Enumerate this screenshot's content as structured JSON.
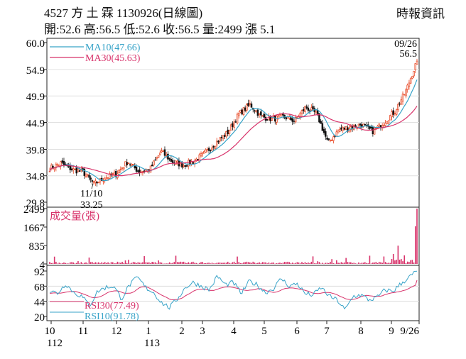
{
  "header": {
    "title": "4527 方 土 霖 1130926(日線圖)",
    "ohlc": "開:52.6 高:56.5 低:52.6 收:56.5 量:2499 漲 5.1",
    "source": "時報資訊"
  },
  "colors": {
    "up": "#e8431f",
    "down": "#111111",
    "ma10": "#37a3c8",
    "ma30": "#d8336b",
    "rsi30": "#d8336b",
    "rsi10": "#37a3c8",
    "volume": "#d8336b"
  },
  "chart_data": [
    {
      "type": "candlestick",
      "panel": "price",
      "y_ticks": [
        "60.0",
        "54.9",
        "49.9",
        "44.9",
        "39.8",
        "34.8",
        "29.8"
      ],
      "ylim": [
        29.8,
        60.0
      ],
      "x_tick_labels": [
        "10",
        "11",
        "12",
        "1",
        "2",
        "3",
        "4",
        "5",
        "6",
        "7",
        "8",
        "9",
        "9/26"
      ],
      "year_labels": [
        "112",
        "113"
      ],
      "legend": [
        {
          "name": "MA10(47.66)",
          "color": "#37a3c8"
        },
        {
          "name": "MA30(45.63)",
          "color": "#d8336b"
        }
      ],
      "annotations": {
        "high": {
          "date": "09/26",
          "value": "56.5"
        },
        "low": {
          "date": "11/10",
          "value": "33.25"
        }
      },
      "price_anchors": [
        36.2,
        37.2,
        36.0,
        35.5,
        33.25,
        34.5,
        35.2,
        37.5,
        35.6,
        36.0,
        39.4,
        37.5,
        36.8,
        37.6,
        39.2,
        41.2,
        43.0,
        46.5,
        48.3,
        46.0,
        45.5,
        46.0,
        45.2,
        47.8,
        46.5,
        41.0,
        43.5,
        44.0,
        44.5,
        43.2,
        44.8,
        47.0,
        50.8,
        56.5
      ]
    },
    {
      "type": "bar",
      "panel": "volume",
      "series": [
        {
          "name": "成交量(張)",
          "last": 2499
        }
      ],
      "y_ticks": [
        "2499",
        "1667",
        "835",
        "4"
      ],
      "ylim": [
        4,
        2499
      ]
    },
    {
      "type": "line",
      "panel": "rsi",
      "y_ticks": [
        "92",
        "68",
        "44",
        "20"
      ],
      "ylim": [
        20,
        92
      ],
      "series": [
        {
          "name": "RSI30(77.49)",
          "color": "#d8336b",
          "last": 77.49
        },
        {
          "name": "RSI10(91.78)",
          "color": "#37a3c8",
          "last": 91.78
        }
      ],
      "rsi10_anchors": [
        60,
        57,
        72,
        58,
        52,
        37,
        60,
        66,
        68,
        48,
        70,
        82,
        66,
        58,
        42,
        34,
        48,
        66,
        74,
        68,
        62,
        84,
        70,
        74,
        56,
        76,
        70,
        58,
        64,
        80,
        68,
        72,
        56,
        54,
        66,
        52,
        46,
        30,
        52,
        54,
        46,
        50,
        62,
        60,
        72,
        82,
        92
      ]
    }
  ]
}
